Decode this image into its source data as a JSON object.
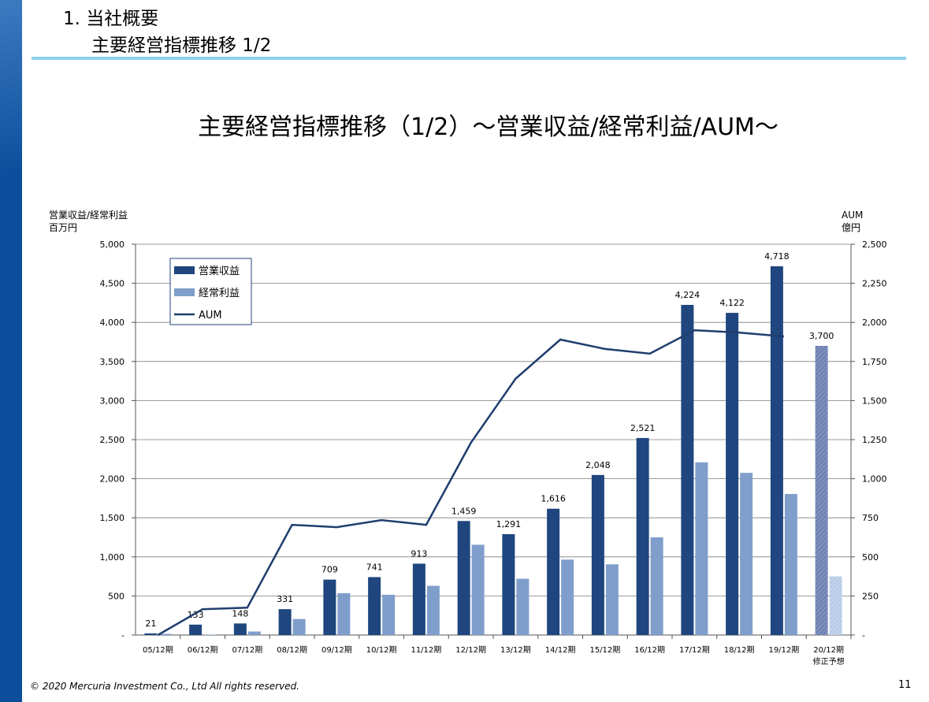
{
  "slide": {
    "section_number": "1. 当社概要",
    "section_subtitle": "主要経営指標推移 1/2",
    "footer": "© 2020 Mercuria Investment Co., Ltd  All rights reserved.",
    "page_number": "11"
  },
  "colors": {
    "left_band": "#0b4f9c",
    "title_rule": "#8fd0ee",
    "operating_revenue": "#1f467e",
    "ordinary_profit": "#7f9ecb",
    "aum_line": "#1f3e6e",
    "forecast_revenue": "#7d8fbd",
    "forecast_profit": "#c2d3ec"
  },
  "chart_data": {
    "type": "bar",
    "title": "主要経営指標推移（1/2）～営業収益/経常利益/AUM～",
    "ylabel_left": [
      "営業収益/経常利益",
      "百万円"
    ],
    "ylabel_right": [
      "AUM",
      "億円"
    ],
    "categories": [
      "05/12期",
      "06/12期",
      "07/12期",
      "08/12期",
      "09/12期",
      "10/12期",
      "11/12期",
      "12/12期",
      "13/12期",
      "14/12期",
      "15/12期",
      "16/12期",
      "17/12期",
      "18/12期",
      "19/12期",
      "20/12期"
    ],
    "category_sublabels": [
      "",
      "",
      "",
      "",
      "",
      "",
      "",
      "",
      "",
      "",
      "",
      "",
      "",
      "",
      "",
      "修正予想"
    ],
    "ylim_left": [
      0,
      5000
    ],
    "yticks_left": [
      "-",
      "500",
      "1,000",
      "1,500",
      "2,000",
      "2,500",
      "3,000",
      "3,500",
      "4,000",
      "4,500",
      "5,000"
    ],
    "ylim_right": [
      0,
      2500
    ],
    "yticks_right": [
      "-",
      "250",
      "500",
      "750",
      "1,000",
      "1,250",
      "1,500",
      "1,750",
      "2,000",
      "2,250",
      "2,500"
    ],
    "series": [
      {
        "name": "営業収益",
        "axis": "left",
        "values": [
          21,
          133,
          148,
          331,
          709,
          741,
          913,
          1459,
          1291,
          1616,
          2048,
          2521,
          4224,
          4122,
          4718,
          3700
        ],
        "labels": [
          "21",
          "133",
          "148",
          "331",
          "709",
          "741",
          "913",
          "1,459",
          "1,291",
          "1,616",
          "2,048",
          "2,521",
          "4,224",
          "4,122",
          "4,718",
          "3,700"
        ]
      },
      {
        "name": "経常利益",
        "axis": "left",
        "values": [
          15,
          5,
          45,
          205,
          535,
          515,
          630,
          1155,
          720,
          965,
          905,
          1250,
          2210,
          2075,
          1805,
          750
        ]
      },
      {
        "name": "AUM",
        "type": "line",
        "axis": "right",
        "values": [
          0,
          165,
          175,
          705,
          690,
          735,
          705,
          1230,
          1640,
          1890,
          1830,
          1800,
          1950,
          1935,
          1910,
          null
        ]
      }
    ],
    "forecast_index": 15,
    "grid": true,
    "legend": "top-left"
  }
}
